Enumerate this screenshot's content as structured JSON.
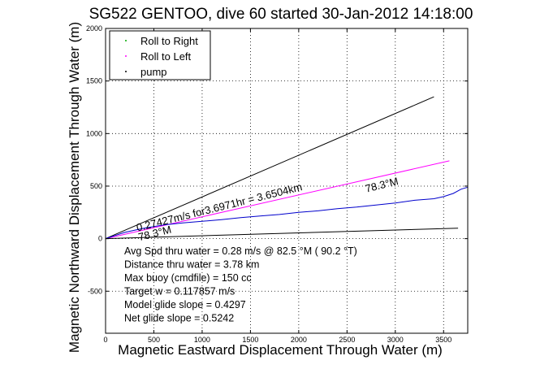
{
  "chart_data": {
    "type": "line",
    "title": "SG522 GENTOO, dive 60 started 30-Jan-2012 14:18:00",
    "xlabel": "Magnetic Eastward Displacement Through Water (m)",
    "ylabel": "Magnetic Northward Displacement Through Water (m)",
    "xlim": [
      0,
      3750
    ],
    "ylim": [
      -900,
      2000
    ],
    "xticks": [
      0,
      500,
      1000,
      1500,
      2000,
      2500,
      3000,
      3500
    ],
    "yticks": [
      -500,
      0,
      500,
      1000,
      1500,
      2000
    ],
    "grid": true,
    "legend_position": "top-left",
    "legend": [
      {
        "name": "Roll to Right",
        "color": "#00aa00",
        "marker": "dot"
      },
      {
        "name": "Roll to Left",
        "color": "#ff00ff",
        "marker": "dot"
      },
      {
        "name": "pump",
        "color": "#000000",
        "marker": "dot"
      }
    ],
    "series": [
      {
        "color": "#000000",
        "x": [
          0,
          3400
        ],
        "y": [
          0,
          1350
        ]
      },
      {
        "color": "#ff00ff",
        "x": [
          0,
          3560
        ],
        "y": [
          0,
          740
        ]
      },
      {
        "color": "#0000cc",
        "x": [
          0,
          100,
          200,
          300,
          400,
          600,
          800,
          1000,
          1200,
          1400,
          1600,
          1800,
          2000,
          2200,
          2400,
          2600,
          2800,
          3000,
          3200,
          3400,
          3500,
          3600,
          3680,
          3750
        ],
        "y": [
          0,
          30,
          60,
          80,
          100,
          130,
          150,
          165,
          180,
          200,
          215,
          230,
          250,
          265,
          285,
          300,
          320,
          340,
          365,
          380,
          400,
          430,
          470,
          490
        ]
      },
      {
        "color": "#000000",
        "x": [
          0,
          3650
        ],
        "y": [
          0,
          100
        ]
      }
    ],
    "annotations": [
      {
        "text": "0.27427m/s for3.6971hr = 3.6504km",
        "x": 330,
        "y": 70,
        "rotate": -14
      },
      {
        "text": "78.3°M",
        "x": 2700,
        "y": 440,
        "rotate": -14
      },
      {
        "text": "78.3°M",
        "x": 350,
        "y": -20,
        "rotate": -14
      }
    ],
    "stats": [
      "Avg Spd thru water =  0.28 m/s @   82.5    °M ( 90.2 °T)",
      "Distance thru water =  3.78 km",
      "Max buoy (cmdfile) = 150 cc",
      "Target w = 0.117857 m/s",
      "Model glide slope = 0.4297",
      "Net glide slope = 0.5242"
    ]
  }
}
